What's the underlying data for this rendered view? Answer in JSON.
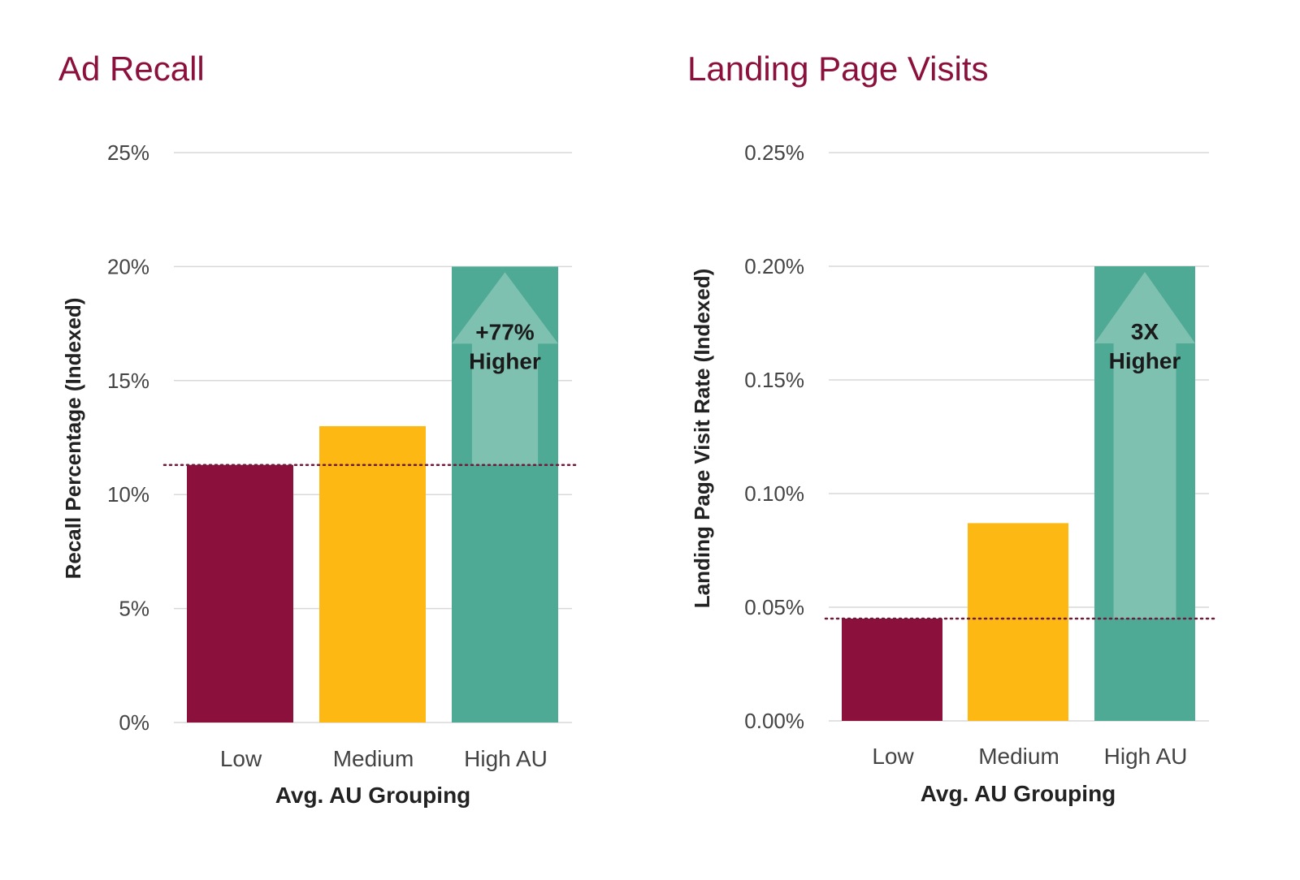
{
  "colors": {
    "title": "#8c103c",
    "low": "#8c103c",
    "medium": "#fdb813",
    "high": "#4ea995",
    "arrow": "#7fc1b1",
    "grid": "#d9d9d9",
    "reference_line": "#6e1a3c"
  },
  "chart_data": [
    {
      "type": "bar",
      "title": "Ad Recall",
      "xlabel": "Avg. AU Grouping",
      "ylabel": "Recall Percentage (Indexed)",
      "categories": [
        "Low",
        "Medium",
        "High AU"
      ],
      "values": [
        11.3,
        13.0,
        20.0
      ],
      "ylim": [
        0,
        25
      ],
      "yticks": [
        "0%",
        "5%",
        "10%",
        "15%",
        "20%",
        "25%"
      ],
      "grid": true,
      "reference_value": 11.3,
      "annotation": {
        "line1": "+77%",
        "line2": "Higher"
      }
    },
    {
      "type": "bar",
      "title": "Landing Page Visits",
      "xlabel": "Avg. AU Grouping",
      "ylabel": "Landing Page Visit Rate (Indexed)",
      "categories": [
        "Low",
        "Medium",
        "High AU"
      ],
      "values": [
        0.045,
        0.087,
        0.2
      ],
      "ylim": [
        0,
        0.25
      ],
      "yticks": [
        "0.00%",
        "0.05%",
        "0.10%",
        "0.15%",
        "0.20%",
        "0.25%"
      ],
      "grid": true,
      "reference_value": 0.045,
      "annotation": {
        "line1": "3X",
        "line2": "Higher"
      }
    }
  ]
}
